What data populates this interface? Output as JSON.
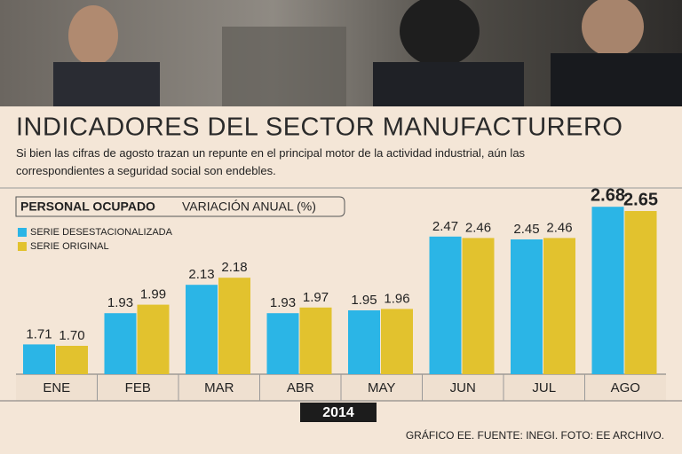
{
  "chart_data": {
    "type": "bar",
    "title": "INDICADORES DEL SECTOR MANUFACTURERO",
    "subtitle": "Si bien las cifras de agosto trazan un repunte en el principal motor de la actividad industrial, aún las correspondientes a seguridad social son endebles.",
    "chart_label": "PERSONAL OCUPADO",
    "unit_label": "VARIACIÓN ANUAL (%)",
    "x_label": "2014",
    "source": "GRÁFICO EE. FUENTE: INEGI. FOTO: EE ARCHIVO.",
    "categories": [
      "ENE",
      "FEB",
      "MAR",
      "ABR",
      "MAY",
      "JUN",
      "JUL",
      "AGO"
    ],
    "ylim": [
      1.5,
      2.7
    ],
    "series": [
      {
        "name": "SERIE DESESTACIONALIZADA",
        "color": "#2bb5e6",
        "values": [
          1.71,
          1.93,
          2.13,
          1.93,
          1.95,
          2.47,
          2.45,
          2.68
        ],
        "value_labels": [
          "1.71",
          "1.93",
          "2.13",
          "1.93",
          "1.95",
          "2.47",
          "2.45",
          "2.68"
        ]
      },
      {
        "name": "SERIE ORIGINAL",
        "color": "#e2c22e",
        "values": [
          1.7,
          1.99,
          2.18,
          1.97,
          1.96,
          2.46,
          2.46,
          2.65
        ],
        "value_labels": [
          "1.70",
          "1.99",
          "2.18",
          "1.97",
          "1.96",
          "2.46",
          "2.46",
          "2.65"
        ]
      }
    ]
  }
}
